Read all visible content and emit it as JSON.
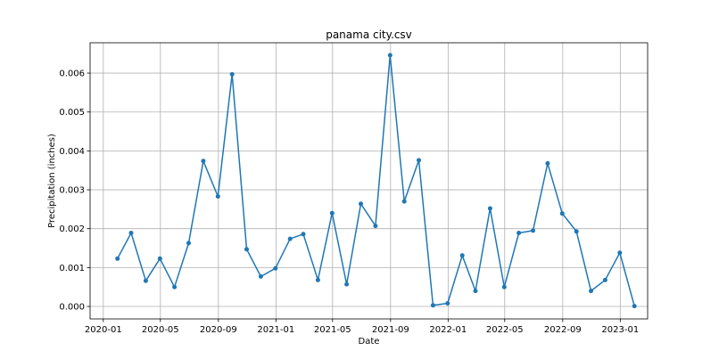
{
  "chart_data": {
    "type": "line",
    "title": "panama city.csv",
    "xlabel": "Date",
    "ylabel": "Precipitation (inches)",
    "grid": true,
    "x_tick_labels": [
      "2020-01",
      "2020-05",
      "2020-09",
      "2021-01",
      "2021-05",
      "2021-09",
      "2022-01",
      "2022-05",
      "2022-09",
      "2023-01"
    ],
    "y_tick_labels": [
      "0.000",
      "0.001",
      "0.002",
      "0.003",
      "0.004",
      "0.005",
      "0.006"
    ],
    "xlim": [
      "2019-12-04",
      "2023-02-28"
    ],
    "ylim": [
      -0.00032,
      0.00678
    ],
    "series": [
      {
        "color": "#1f77b4",
        "marker": "circle",
        "x": [
          "2020-01-31",
          "2020-02-29",
          "2020-03-31",
          "2020-04-30",
          "2020-05-31",
          "2020-06-30",
          "2020-07-31",
          "2020-08-31",
          "2020-09-30",
          "2020-10-31",
          "2020-11-30",
          "2020-12-31",
          "2021-01-31",
          "2021-02-28",
          "2021-03-31",
          "2021-04-30",
          "2021-05-31",
          "2021-06-30",
          "2021-07-31",
          "2021-08-31",
          "2021-09-30",
          "2021-10-31",
          "2021-11-30",
          "2021-12-31",
          "2022-01-31",
          "2022-02-28",
          "2022-03-31",
          "2022-04-30",
          "2022-05-31",
          "2022-06-30",
          "2022-07-31",
          "2022-08-31",
          "2022-09-30",
          "2022-10-31",
          "2022-11-30",
          "2022-12-31",
          "2023-01-31"
        ],
        "y": [
          0.00123,
          0.00189,
          0.00066,
          0.00123,
          0.0005,
          0.00163,
          0.00374,
          0.00283,
          0.00597,
          0.00147,
          0.00077,
          0.00098,
          0.00174,
          0.00186,
          0.00068,
          0.0024,
          0.00057,
          0.00264,
          0.00207,
          0.00646,
          0.0027,
          0.00376,
          3e-05,
          8e-05,
          0.00131,
          0.0004,
          0.00252,
          0.0005,
          0.00189,
          0.00195,
          0.00368,
          0.00239,
          0.00193,
          0.0004,
          0.00068,
          0.00138,
          1e-05
        ]
      }
    ]
  }
}
